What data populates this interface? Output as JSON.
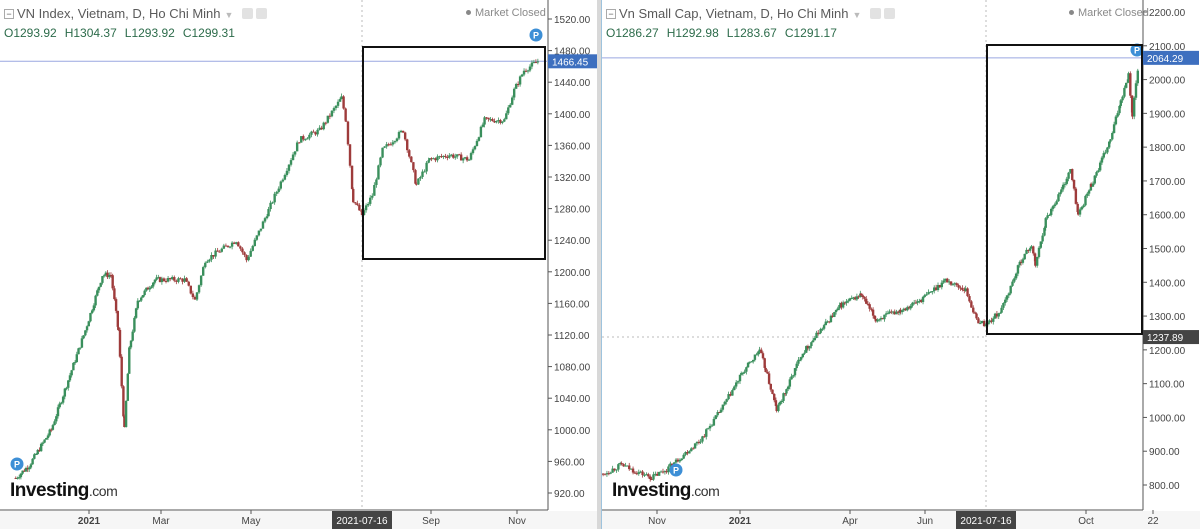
{
  "colors": {
    "up": "#3a8f5c",
    "down": "#9e3b3b",
    "crosshair": "#9aa7e0",
    "price_tag": "#3d6fbf",
    "date_tag": "#444444",
    "pin": "#3d8fd6"
  },
  "left": {
    "title": "VN Index, Vietnam, D, Ho Chi Minh",
    "ohlc": {
      "o": "O1293.92",
      "h": "H1304.37",
      "l": "L1293.92",
      "c": "C1299.31"
    },
    "status": "Market Closed",
    "logo": {
      "main": "Investing",
      "suffix": ".com"
    },
    "price_tag": "1466.45",
    "date_tag": "2021-07-16",
    "pin_label": "P",
    "chart_data": {
      "type": "candlestick",
      "ylim": [
        900,
        1540
      ],
      "y_ticks": [
        "1520.00",
        "1480.00",
        "1440.00",
        "1400.00",
        "1360.00",
        "1320.00",
        "1280.00",
        "1240.00",
        "1200.00",
        "1160.00",
        "1120.00",
        "1080.00",
        "1040.00",
        "1000.00",
        "960.00",
        "920.00"
      ],
      "x_ticks": [
        {
          "label": "2021",
          "date": "2021-01-01"
        },
        {
          "label": "Mar",
          "date": "2021-03-01"
        },
        {
          "label": "May",
          "date": "2021-05-01"
        },
        {
          "label": "Sep",
          "date": "2021-09-01"
        },
        {
          "label": "Nov",
          "date": "2021-11-01"
        }
      ],
      "closes": [
        [
          "2020-11-02",
          939
        ],
        [
          "2020-11-13",
          955
        ],
        [
          "2020-12-01",
          1000
        ],
        [
          "2020-12-15",
          1063
        ],
        [
          "2020-12-29",
          1126
        ],
        [
          "2021-01-12",
          1196
        ],
        [
          "2021-01-19",
          1196
        ],
        [
          "2021-01-25",
          1126
        ],
        [
          "2021-01-30",
          1000
        ],
        [
          "2021-02-03",
          1101
        ],
        [
          "2021-02-10",
          1164
        ],
        [
          "2021-02-24",
          1190
        ],
        [
          "2021-03-17",
          1190
        ],
        [
          "2021-03-24",
          1164
        ],
        [
          "2021-03-31",
          1215
        ],
        [
          "2021-04-21",
          1240
        ],
        [
          "2021-04-28",
          1215
        ],
        [
          "2021-05-13",
          1278
        ],
        [
          "2021-06-03",
          1367
        ],
        [
          "2021-06-17",
          1379
        ],
        [
          "2021-07-02",
          1420
        ],
        [
          "2021-07-05",
          1392
        ],
        [
          "2021-07-10",
          1291
        ],
        [
          "2021-07-16",
          1272
        ],
        [
          "2021-07-23",
          1297
        ],
        [
          "2021-07-30",
          1354
        ],
        [
          "2021-08-13",
          1379
        ],
        [
          "2021-08-22",
          1310
        ],
        [
          "2021-08-31",
          1342
        ],
        [
          "2021-09-14",
          1348
        ],
        [
          "2021-09-28",
          1342
        ],
        [
          "2021-10-09",
          1392
        ],
        [
          "2021-10-23",
          1392
        ],
        [
          "2021-10-30",
          1430
        ],
        [
          "2021-11-06",
          1455
        ],
        [
          "2021-11-17",
          1468
        ]
      ]
    }
  },
  "right": {
    "title": "Vn Small Cap, Vietnam, D, Ho Chi Minh",
    "ohlc": {
      "o": "O1286.27",
      "h": "H1292.98",
      "l": "L1283.67",
      "c": "C1291.17"
    },
    "status": "Market Closed",
    "logo": {
      "main": "Investing",
      "suffix": ".com"
    },
    "price_tag": "2064.29",
    "cross_tag": "1237.89",
    "date_tag": "2021-07-16",
    "pin_label": "P",
    "chart_data": {
      "type": "candlestick",
      "ylim": [
        770,
        2235
      ],
      "y_ticks": [
        "2200.00",
        "2100.00",
        "2000.00",
        "1900.00",
        "1800.00",
        "1700.00",
        "1600.00",
        "1500.00",
        "1400.00",
        "1300.00",
        "1200.00",
        "1100.00",
        "1000.00",
        "900.00",
        "800.00"
      ],
      "x_ticks": [
        {
          "label": "Nov",
          "date": "2020-11-01"
        },
        {
          "label": "2021",
          "date": "2021-01-01"
        },
        {
          "label": "Apr",
          "date": "2021-04-01"
        },
        {
          "label": "Jun",
          "date": "2021-06-01"
        },
        {
          "label": "Oct",
          "date": "2021-10-01"
        },
        {
          "label": "22",
          "date": "2021-11-22"
        }
      ],
      "closes": [
        [
          "2020-09-21",
          830
        ],
        [
          "2020-10-06",
          860
        ],
        [
          "2020-10-13",
          846
        ],
        [
          "2020-10-28",
          822
        ],
        [
          "2020-11-08",
          846
        ],
        [
          "2020-12-03",
          934
        ],
        [
          "2020-12-18",
          1022
        ],
        [
          "2021-01-02",
          1126
        ],
        [
          "2021-01-17",
          1200
        ],
        [
          "2021-01-22",
          1141
        ],
        [
          "2021-01-31",
          1022
        ],
        [
          "2021-02-08",
          1082
        ],
        [
          "2021-02-20",
          1185
        ],
        [
          "2021-03-08",
          1259
        ],
        [
          "2021-03-25",
          1333
        ],
        [
          "2021-04-10",
          1363
        ],
        [
          "2021-04-22",
          1289
        ],
        [
          "2021-05-12",
          1318
        ],
        [
          "2021-05-29",
          1348
        ],
        [
          "2021-06-16",
          1407
        ],
        [
          "2021-07-01",
          1377
        ],
        [
          "2021-07-09",
          1289
        ],
        [
          "2021-07-16",
          1274
        ],
        [
          "2021-07-28",
          1318
        ],
        [
          "2021-08-12",
          1466
        ],
        [
          "2021-08-20",
          1510
        ],
        [
          "2021-08-23",
          1451
        ],
        [
          "2021-08-31",
          1585
        ],
        [
          "2021-09-12",
          1673
        ],
        [
          "2021-09-19",
          1733
        ],
        [
          "2021-09-25",
          1599
        ],
        [
          "2021-10-05",
          1688
        ],
        [
          "2021-10-20",
          1821
        ],
        [
          "2021-10-28",
          1940
        ],
        [
          "2021-11-03",
          2014
        ],
        [
          "2021-11-06",
          1895
        ],
        [
          "2021-11-11",
          2058
        ]
      ]
    }
  }
}
